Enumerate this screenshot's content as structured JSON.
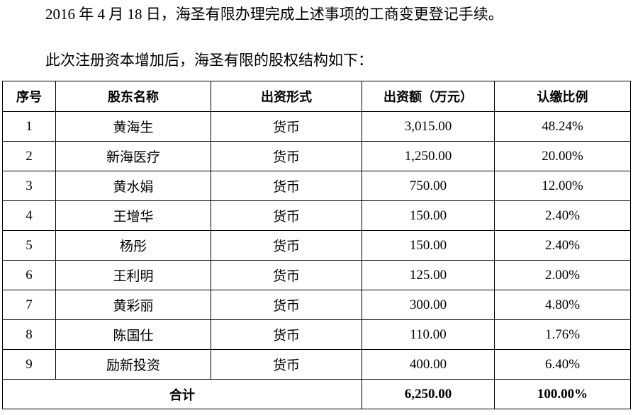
{
  "paragraphs": [
    "2016 年 4 月 18 日，海圣有限办理完成上述事项的工商变更登记手续。",
    "此次注册资本增加后，海圣有限的股权结构如下："
  ],
  "table": {
    "headers": [
      "序号",
      "股东名称",
      "出资形式",
      "出资额（万元）",
      "认缴比例"
    ],
    "rows": [
      [
        "1",
        "黄海生",
        "货币",
        "3,015.00",
        "48.24%"
      ],
      [
        "2",
        "新海医疗",
        "货币",
        "1,250.00",
        "20.00%"
      ],
      [
        "3",
        "黄水娟",
        "货币",
        "750.00",
        "12.00%"
      ],
      [
        "4",
        "王增华",
        "货币",
        "150.00",
        "2.40%"
      ],
      [
        "5",
        "杨彤",
        "货币",
        "150.00",
        "2.40%"
      ],
      [
        "6",
        "王利明",
        "货币",
        "125.00",
        "2.00%"
      ],
      [
        "7",
        "黄彩丽",
        "货币",
        "300.00",
        "4.80%"
      ],
      [
        "8",
        "陈国仕",
        "货币",
        "110.00",
        "1.76%"
      ],
      [
        "9",
        "励新投资",
        "货币",
        "400.00",
        "6.40%"
      ]
    ],
    "total": {
      "label": "合计",
      "amount": "6,250.00",
      "ratio": "100.00%"
    }
  }
}
